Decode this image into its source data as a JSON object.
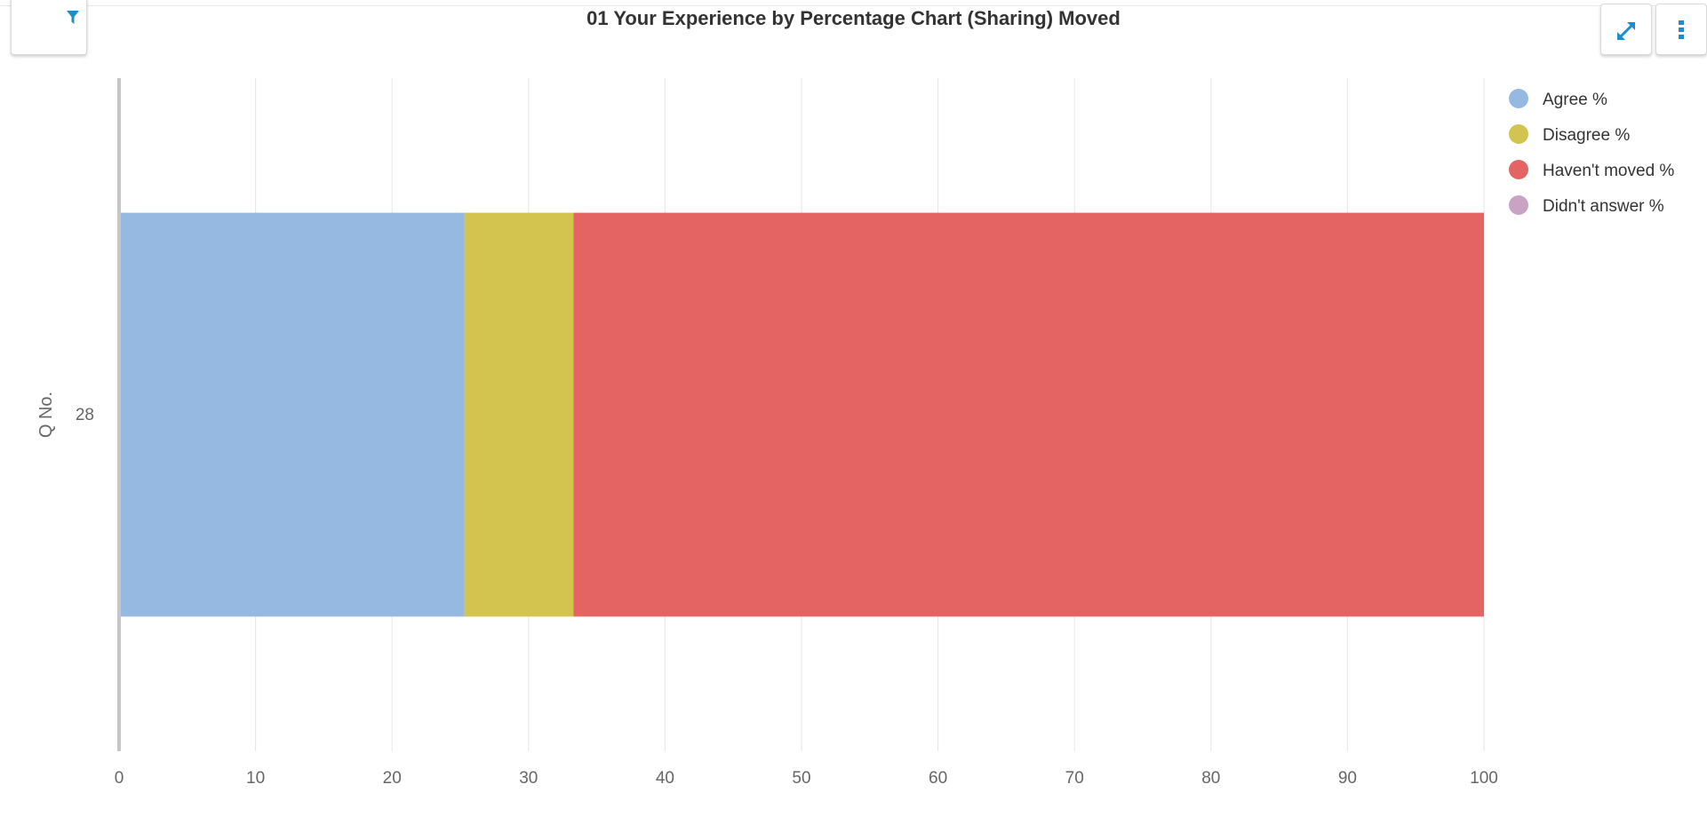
{
  "header": {
    "title": "01 Your Experience by Percentage Chart (Sharing) Moved"
  },
  "toolbar": {
    "filter_icon": "filter-icon",
    "expand_icon": "expand-icon",
    "more_icon": "more-vertical-icon",
    "accent_color": "#1a8fc9"
  },
  "chart_data": {
    "type": "bar",
    "orientation": "horizontal",
    "stacked": true,
    "title": "01 Your Experience by Percentage Chart (Sharing) Moved",
    "ylabel": "Q No.",
    "xlabel": "",
    "categories": [
      "28"
    ],
    "xlim": [
      0,
      100
    ],
    "xticks": [
      0,
      10,
      20,
      30,
      40,
      50,
      60,
      70,
      80,
      90,
      100
    ],
    "grid": true,
    "legend_position": "top-right",
    "series": [
      {
        "name": "Agree %",
        "color": "#95b9e1",
        "values": [
          25.3
        ]
      },
      {
        "name": "Disagree %",
        "color": "#d3c450",
        "values": [
          8.0
        ]
      },
      {
        "name": "Haven't moved %",
        "color": "#e46363",
        "values": [
          66.7
        ]
      },
      {
        "name": "Didn't answer %",
        "color": "#c9a2c4",
        "values": [
          0
        ]
      }
    ]
  }
}
